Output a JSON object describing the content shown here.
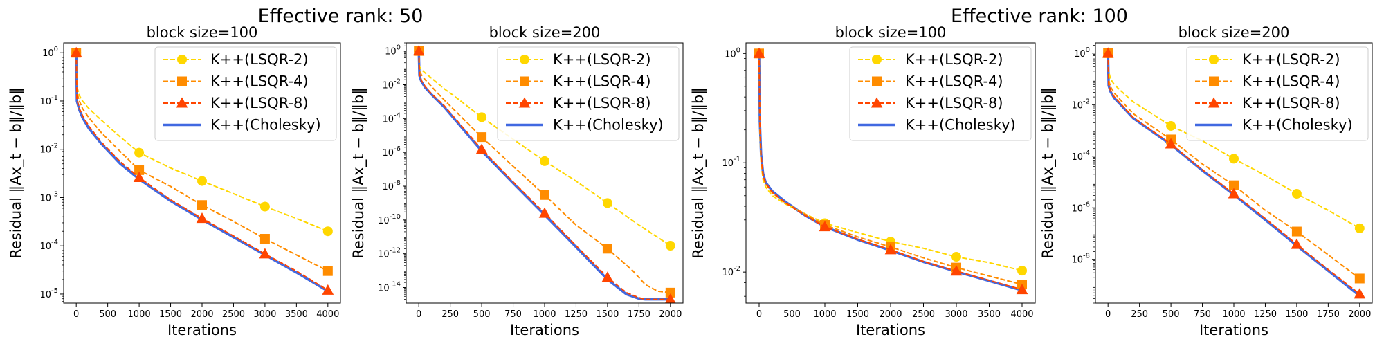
{
  "figure": {
    "groups": [
      {
        "title": "Effective rank: 50"
      },
      {
        "title": "Effective rank: 100"
      }
    ]
  },
  "chart_data": [
    {
      "type": "line",
      "title": "block size=100",
      "xlabel": "Iterations",
      "ylabel": "Residual ‖Ax_t − b‖/‖b‖",
      "xlim": [
        -200,
        4200
      ],
      "xticks": [
        0,
        500,
        1000,
        1500,
        2000,
        2500,
        3000,
        3500,
        4000
      ],
      "ylog": true,
      "ylim": [
        6.5e-06,
        1.6
      ],
      "yticks": [
        {
          "v": 1,
          "l": "10^0"
        },
        {
          "v": 0.1,
          "l": "10^-1"
        },
        {
          "v": 0.01,
          "l": "10^-2"
        },
        {
          "v": 0.001,
          "l": "10^-3"
        },
        {
          "v": 0.0001,
          "l": "10^-4"
        },
        {
          "v": 1e-05,
          "l": "10^-5"
        }
      ],
      "legend": "upper right",
      "series": [
        {
          "name": "K++(LSQR-2)",
          "color": "#FFD700",
          "marker": "circle",
          "dashed": true,
          "x": [
            0,
            10,
            50,
            100,
            200,
            400,
            700,
            1000,
            1500,
            2000,
            2500,
            3000,
            3500,
            4000
          ],
          "y": [
            1,
            0.2,
            0.13,
            0.1,
            0.07,
            0.04,
            0.018,
            0.0085,
            0.0041,
            0.0022,
            0.0012,
            0.00065,
            0.00037,
            0.0002
          ],
          "mx": [
            0,
            1000,
            2000,
            3000,
            4000
          ]
        },
        {
          "name": "K++(LSQR-4)",
          "color": "#FF8C00",
          "marker": "square",
          "dashed": true,
          "x": [
            0,
            10,
            50,
            100,
            200,
            400,
            700,
            1000,
            1500,
            2000,
            2500,
            3000,
            3500,
            4000
          ],
          "y": [
            1,
            0.15,
            0.1,
            0.07,
            0.045,
            0.022,
            0.009,
            0.0037,
            0.0017,
            0.0007,
            0.00032,
            0.00014,
            6.5e-05,
            3e-05
          ],
          "mx": [
            0,
            1000,
            2000,
            3000,
            4000
          ]
        },
        {
          "name": "K++(LSQR-8)",
          "color": "#FF4500",
          "marker": "triangle",
          "dashed": true,
          "x": [
            0,
            10,
            50,
            100,
            200,
            400,
            700,
            1000,
            1500,
            2000,
            2500,
            3000,
            3500,
            4000
          ],
          "y": [
            1,
            0.11,
            0.07,
            0.05,
            0.03,
            0.014,
            0.0055,
            0.0026,
            0.0009,
            0.00037,
            0.00016,
            6.8e-05,
            3e-05,
            1.2e-05
          ],
          "mx": [
            0,
            1000,
            2000,
            3000,
            4000
          ]
        },
        {
          "name": "K++(Cholesky)",
          "color": "#4169E1",
          "marker": "none",
          "dashed": false,
          "x": [
            0,
            10,
            50,
            100,
            200,
            400,
            700,
            1000,
            1500,
            2000,
            2500,
            3000,
            3500,
            4000
          ],
          "y": [
            1,
            0.1,
            0.065,
            0.045,
            0.027,
            0.013,
            0.005,
            0.0024,
            0.00085,
            0.00035,
            0.00015,
            6.5e-05,
            2.8e-05,
            1.15e-05
          ],
          "mx": []
        }
      ]
    },
    {
      "type": "line",
      "title": "block size=200",
      "xlabel": "Iterations",
      "ylabel": "Residual ‖Ax_t − b‖/‖b‖",
      "xlim": [
        -100,
        2100
      ],
      "xticks": [
        0,
        250,
        500,
        750,
        1000,
        1250,
        1500,
        1750,
        2000
      ],
      "ylog": true,
      "ylim": [
        1.2e-15,
        3
      ],
      "yticks": [
        {
          "v": 1,
          "l": "10^0"
        },
        {
          "v": 0.01,
          "l": "10^-2"
        },
        {
          "v": 0.0001,
          "l": "10^-4"
        },
        {
          "v": 1e-06,
          "l": "10^-6"
        },
        {
          "v": 1e-08,
          "l": "10^-8"
        },
        {
          "v": 1e-10,
          "l": "10^-10"
        },
        {
          "v": 1e-12,
          "l": "10^-12"
        },
        {
          "v": 1e-14,
          "l": "10^-14"
        }
      ],
      "legend": "upper right",
      "series": [
        {
          "name": "K++(LSQR-2)",
          "color": "#FFD700",
          "marker": "circle",
          "dashed": true,
          "x": [
            0,
            5,
            20,
            50,
            100,
            200,
            300,
            500,
            750,
            1000,
            1250,
            1500,
            1750,
            2000
          ],
          "y": [
            1,
            0.12,
            0.08,
            0.05,
            0.025,
            0.006,
            0.0017,
            0.00012,
            6e-06,
            3e-07,
            2e-08,
            1e-09,
            5e-11,
            3e-12
          ],
          "mx": [
            0,
            500,
            1000,
            1500,
            2000
          ]
        },
        {
          "name": "K++(LSQR-4)",
          "color": "#FF8C00",
          "marker": "square",
          "dashed": true,
          "x": [
            0,
            5,
            20,
            50,
            100,
            200,
            500,
            750,
            1000,
            1250,
            1500,
            1700,
            1800,
            1900,
            2000
          ],
          "y": [
            1,
            0.07,
            0.04,
            0.02,
            0.008,
            0.0013,
            8e-06,
            1.5e-07,
            3e-09,
            5e-11,
            2e-12,
            1e-13,
            1.5e-14,
            6e-15,
            5e-15
          ],
          "mx": [
            0,
            500,
            1000,
            1500,
            2000
          ]
        },
        {
          "name": "K++(LSQR-8)",
          "color": "#FF4500",
          "marker": "triangle",
          "dashed": true,
          "x": [
            0,
            5,
            20,
            50,
            100,
            200,
            500,
            750,
            1000,
            1250,
            1500,
            1650,
            1750,
            1800,
            1900,
            2000
          ],
          "y": [
            1,
            0.04,
            0.018,
            0.008,
            0.003,
            0.0006,
            1.5e-06,
            1.8e-08,
            2.5e-10,
            3e-12,
            4e-14,
            5e-15,
            2.5e-15,
            2e-15,
            2e-15,
            2e-15
          ],
          "mx": [
            0,
            500,
            1000,
            1500,
            2000
          ]
        },
        {
          "name": "K++(Cholesky)",
          "color": "#4169E1",
          "marker": "none",
          "dashed": false,
          "x": [
            0,
            5,
            20,
            50,
            100,
            200,
            500,
            750,
            1000,
            1250,
            1500,
            1650,
            1750,
            1800,
            1900,
            2000
          ],
          "y": [
            1,
            0.035,
            0.016,
            0.007,
            0.0027,
            0.0005,
            1.2e-06,
            1.5e-08,
            2e-10,
            2.5e-12,
            3e-14,
            4e-15,
            2.2e-15,
            2e-15,
            2e-15,
            2e-15
          ],
          "mx": []
        }
      ]
    },
    {
      "type": "line",
      "title": "block size=100",
      "xlabel": "Iterations",
      "ylabel": "Residual ‖Ax_t − b‖/‖b‖",
      "xlim": [
        -200,
        4200
      ],
      "xticks": [
        0,
        500,
        1000,
        1500,
        2000,
        2500,
        3000,
        3500,
        4000
      ],
      "ylog": true,
      "ylim": [
        0.0052,
        1.25
      ],
      "yticks": [
        {
          "v": 1,
          "l": "10^0"
        },
        {
          "v": 0.1,
          "l": "10^-1"
        },
        {
          "v": 0.01,
          "l": "10^-2"
        }
      ],
      "legend": "upper right",
      "series": [
        {
          "name": "K++(LSQR-2)",
          "color": "#FFD700",
          "marker": "circle",
          "dashed": true,
          "x": [
            0,
            10,
            30,
            60,
            100,
            200,
            400,
            700,
            1000,
            1500,
            2000,
            2500,
            3000,
            3500,
            4000
          ],
          "y": [
            1,
            0.2,
            0.1,
            0.07,
            0.06,
            0.05,
            0.042,
            0.034,
            0.028,
            0.023,
            0.019,
            0.0165,
            0.0138,
            0.0122,
            0.0103
          ],
          "mx": [
            0,
            1000,
            2000,
            3000,
            4000
          ]
        },
        {
          "name": "K++(LSQR-4)",
          "color": "#FF8C00",
          "marker": "square",
          "dashed": true,
          "x": [
            0,
            10,
            30,
            60,
            100,
            200,
            400,
            700,
            1000,
            1500,
            2000,
            2500,
            3000,
            3500,
            4000
          ],
          "y": [
            1,
            0.22,
            0.11,
            0.075,
            0.064,
            0.053,
            0.043,
            0.034,
            0.027,
            0.021,
            0.017,
            0.0135,
            0.011,
            0.0092,
            0.0077
          ],
          "mx": [
            0,
            1000,
            2000,
            3000,
            4000
          ]
        },
        {
          "name": "K++(LSQR-8)",
          "color": "#FF4500",
          "marker": "triangle",
          "dashed": true,
          "x": [
            0,
            10,
            30,
            60,
            100,
            200,
            400,
            700,
            1000,
            1500,
            2000,
            2500,
            3000,
            3500,
            4000
          ],
          "y": [
            1,
            0.23,
            0.115,
            0.078,
            0.065,
            0.054,
            0.043,
            0.033,
            0.026,
            0.02,
            0.016,
            0.0125,
            0.0102,
            0.0084,
            0.0069
          ],
          "mx": [
            0,
            1000,
            2000,
            3000,
            4000
          ]
        },
        {
          "name": "K++(Cholesky)",
          "color": "#4169E1",
          "marker": "none",
          "dashed": false,
          "x": [
            0,
            10,
            30,
            60,
            100,
            200,
            400,
            700,
            1000,
            1500,
            2000,
            2500,
            3000,
            3500,
            4000
          ],
          "y": [
            1,
            0.24,
            0.12,
            0.08,
            0.066,
            0.055,
            0.044,
            0.033,
            0.026,
            0.0198,
            0.0158,
            0.0124,
            0.0101,
            0.0083,
            0.0068
          ],
          "mx": []
        }
      ]
    },
    {
      "type": "line",
      "title": "block size=200",
      "xlabel": "Iterations",
      "ylabel": "Residual ‖Ax_t − b‖/‖b‖",
      "xlim": [
        -100,
        2100
      ],
      "xticks": [
        0,
        250,
        500,
        750,
        1000,
        1250,
        1500,
        1750,
        2000
      ],
      "ylog": true,
      "ylim": [
        2e-10,
        2.5
      ],
      "yticks": [
        {
          "v": 1,
          "l": "10^0"
        },
        {
          "v": 0.01,
          "l": "10^-2"
        },
        {
          "v": 0.0001,
          "l": "10^-4"
        },
        {
          "v": 1e-06,
          "l": "10^-6"
        },
        {
          "v": 1e-08,
          "l": "10^-8"
        }
      ],
      "legend": "upper right",
      "series": [
        {
          "name": "K++(LSQR-2)",
          "color": "#FFD700",
          "marker": "circle",
          "dashed": true,
          "x": [
            0,
            5,
            20,
            50,
            100,
            200,
            500,
            750,
            1000,
            1250,
            1500,
            1750,
            2000
          ],
          "y": [
            1,
            0.2,
            0.1,
            0.06,
            0.035,
            0.013,
            0.0015,
            0.0004,
            8e-05,
            1.8e-05,
            3.5e-06,
            8e-07,
            1.6e-07
          ],
          "mx": [
            0,
            500,
            1000,
            1500,
            2000
          ]
        },
        {
          "name": "K++(LSQR-4)",
          "color": "#FF8C00",
          "marker": "square",
          "dashed": true,
          "x": [
            0,
            5,
            20,
            50,
            100,
            200,
            500,
            750,
            1000,
            1250,
            1500,
            1750,
            2000
          ],
          "y": [
            1,
            0.09,
            0.05,
            0.028,
            0.015,
            0.0045,
            0.00045,
            5e-05,
            7.5e-06,
            8e-07,
            1.2e-07,
            1.5e-08,
            1.8e-09
          ],
          "mx": [
            0,
            500,
            1000,
            1500,
            2000
          ]
        },
        {
          "name": "K++(LSQR-8)",
          "color": "#FF4500",
          "marker": "triangle",
          "dashed": true,
          "x": [
            0,
            5,
            20,
            50,
            100,
            200,
            500,
            750,
            1000,
            1250,
            1500,
            1750,
            2000
          ],
          "y": [
            1,
            0.06,
            0.035,
            0.02,
            0.011,
            0.0032,
            0.0003,
            3e-05,
            3.5e-06,
            3.8e-07,
            3.8e-08,
            4e-09,
            4.5e-10
          ],
          "mx": [
            0,
            500,
            1000,
            1500,
            2000
          ]
        },
        {
          "name": "K++(Cholesky)",
          "color": "#4169E1",
          "marker": "none",
          "dashed": false,
          "x": [
            0,
            5,
            20,
            50,
            100,
            200,
            500,
            750,
            1000,
            1250,
            1500,
            1750,
            2000
          ],
          "y": [
            1,
            0.055,
            0.032,
            0.018,
            0.01,
            0.003,
            0.00028,
            2.8e-05,
            3.2e-06,
            3.4e-07,
            3.4e-08,
            3.6e-09,
            3.8e-10
          ],
          "mx": []
        }
      ]
    }
  ]
}
